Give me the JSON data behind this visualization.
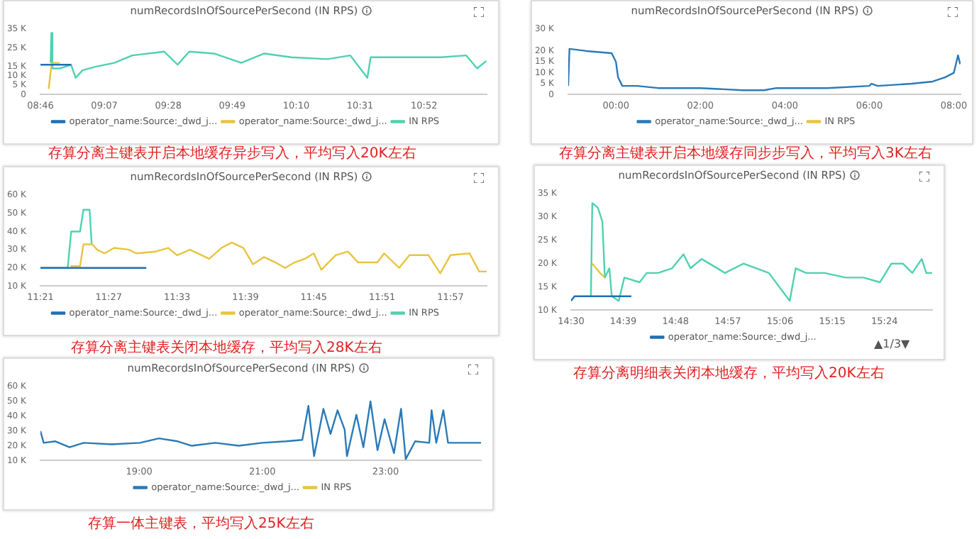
{
  "chart_data": [
    {
      "type": "line",
      "title": "numRecordsInOfSourcePerSecond (IN RPS)",
      "legend": "bottom",
      "marker": "none",
      "annotations": [
        "存算分离主键表开启本地缓存异步写入，平均写入20K左右"
      ],
      "xlim": [
        8.767,
        11.21
      ],
      "xticks": [
        {
          "value": 8.767,
          "label": "08:46"
        },
        {
          "value": 9.117,
          "label": "09:07"
        },
        {
          "value": 9.467,
          "label": "09:28"
        },
        {
          "value": 9.817,
          "label": "09:49"
        },
        {
          "value": 10.167,
          "label": "10:10"
        },
        {
          "value": 10.517,
          "label": "10:31"
        },
        {
          "value": 10.867,
          "label": "10:52"
        }
      ],
      "ylim": [
        0,
        35000
      ],
      "yticks": [
        {
          "value": 0,
          "label": "0"
        },
        {
          "value": 5000,
          "label": "5 K"
        },
        {
          "value": 10000,
          "label": "10 K"
        },
        {
          "value": 15000,
          "label": "15 K"
        },
        {
          "value": 25000,
          "label": "25 K"
        },
        {
          "value": 35000,
          "label": "35 K"
        }
      ],
      "series": [
        {
          "name": "operator_name:Source:_dwd_j...",
          "color": "#1f6fb5",
          "x": [
            8.767,
            8.935
          ],
          "values": [
            16000,
            16000
          ]
        },
        {
          "name": "operator_name:Source:_dwd_j...",
          "color": "#e8c440",
          "x": [
            8.812,
            8.829,
            8.873
          ],
          "values": [
            3000,
            17000,
            17000
          ]
        },
        {
          "name": "IN RPS",
          "color": "#4fd1b0",
          "x": [
            8.823,
            8.827,
            8.833,
            8.873,
            8.935,
            8.96,
            8.998,
            9.072,
            9.172,
            9.27,
            9.445,
            9.518,
            9.582,
            9.717,
            9.867,
            9.992,
            10.14,
            10.338,
            10.463,
            10.557,
            10.575,
            10.76,
            10.96,
            11.097,
            11.158,
            11.208
          ],
          "values": [
            17000,
            33000,
            14000,
            14000,
            16000,
            9000,
            13000,
            15000,
            17000,
            21000,
            23000,
            16000,
            23000,
            22000,
            17000,
            22000,
            20000,
            19000,
            21000,
            9000,
            20000,
            20000,
            20000,
            21000,
            14000,
            18000
          ]
        }
      ]
    },
    {
      "type": "line",
      "title": "numRecordsInOfSourcePerSecond (IN RPS)",
      "legend": "bottom",
      "marker": "none",
      "annotations": [
        "存算分离主键表开启本地缓存同步步写入，平均写入3K左右"
      ],
      "xlim": [
        -1.13,
        8.16
      ],
      "xticks": [
        {
          "value": 0,
          "label": "00:00"
        },
        {
          "value": 2,
          "label": "02:00"
        },
        {
          "value": 4,
          "label": "04:00"
        },
        {
          "value": 6,
          "label": "06:00"
        },
        {
          "value": 8,
          "label": "08:00"
        }
      ],
      "ylim": [
        0,
        30000
      ],
      "yticks": [
        {
          "value": 0,
          "label": "0"
        },
        {
          "value": 5000,
          "label": "5 K"
        },
        {
          "value": 10000,
          "label": "10 K"
        },
        {
          "value": 15000,
          "label": "15 K"
        },
        {
          "value": 20000,
          "label": "20 K"
        },
        {
          "value": 30000,
          "label": "30 K"
        }
      ],
      "series": [
        {
          "name": "operator_name:Source:_dwd_j...",
          "color": "#2a7ab8",
          "x": [
            -1.13,
            -1.1,
            -0.7,
            -0.1,
            0.0,
            0.05,
            0.15,
            0.5,
            1,
            2,
            3,
            3.5,
            3.8,
            4,
            5,
            6,
            6.05,
            6.2,
            7,
            7.5,
            7.8,
            8,
            8.1,
            8.15
          ],
          "values": [
            4000,
            21000,
            20000,
            19000,
            15000,
            8000,
            4000,
            4000,
            3000,
            3000,
            2000,
            2000,
            3000,
            3000,
            3000,
            4000,
            5000,
            4000,
            5000,
            6000,
            8000,
            10000,
            18000,
            14000
          ]
        },
        {
          "name": "IN RPS",
          "color": "#e8c440"
        }
      ]
    },
    {
      "type": "line",
      "title": "numRecordsInOfSourcePerSecond (IN RPS)",
      "legend": "bottom",
      "marker": "none",
      "annotations": [
        "存算分离主键表关闭本地缓存，平均写入28K左右"
      ],
      "xlim": [
        11.35,
        12.003
      ],
      "xticks": [
        {
          "value": 11.35,
          "label": "11:21"
        },
        {
          "value": 11.45,
          "label": "11:27"
        },
        {
          "value": 11.55,
          "label": "11:33"
        },
        {
          "value": 11.65,
          "label": "11:39"
        },
        {
          "value": 11.75,
          "label": "11:45"
        },
        {
          "value": 11.85,
          "label": "11:51"
        },
        {
          "value": 11.95,
          "label": "11:57"
        }
      ],
      "ylim": [
        10000,
        60000
      ],
      "yticks": [
        {
          "value": 10000,
          "label": "10 K"
        },
        {
          "value": 20000,
          "label": "20 K"
        },
        {
          "value": 30000,
          "label": "30 K"
        },
        {
          "value": 40000,
          "label": "40 K"
        },
        {
          "value": 50000,
          "label": "50 K"
        },
        {
          "value": 60000,
          "label": "60 K"
        }
      ],
      "series": [
        {
          "name": "operator_name:Source:_dwd_j...",
          "color": "#1f6fb5",
          "x": [
            11.35,
            11.505
          ],
          "values": [
            20000,
            20000
          ]
        },
        {
          "name": "operator_name:Source:_dwd_j...",
          "color": "#e8c440",
          "x": [
            11.394,
            11.408,
            11.413,
            11.426,
            11.433,
            11.444,
            11.458,
            11.48,
            11.49,
            11.519,
            11.537,
            11.55,
            11.569,
            11.597,
            11.615,
            11.63,
            11.647,
            11.661,
            11.677,
            11.694,
            11.708,
            11.722,
            11.737,
            11.75,
            11.761,
            11.782,
            11.8,
            11.815,
            11.843,
            11.853,
            11.875,
            11.89,
            11.918,
            11.935,
            11.95,
            11.978,
            11.992,
            12.003
          ],
          "values": [
            21000,
            21000,
            33000,
            33000,
            30000,
            28000,
            31000,
            30000,
            28000,
            29000,
            31000,
            27000,
            30000,
            25000,
            31000,
            34000,
            31000,
            22000,
            26000,
            23000,
            20000,
            23000,
            25000,
            28000,
            19000,
            27000,
            29000,
            23000,
            23000,
            28000,
            20000,
            27000,
            27000,
            17000,
            27000,
            28000,
            18000,
            18000
          ]
        },
        {
          "name": "IN RPS",
          "color": "#4fd1b0",
          "x": [
            11.35,
            11.39,
            11.395,
            11.408,
            11.413,
            11.422,
            11.425
          ],
          "values": [
            20000,
            20000,
            40000,
            40000,
            52000,
            52000,
            33000
          ]
        }
      ]
    },
    {
      "type": "line",
      "title": "numRecordsInOfSourcePerSecond (IN RPS)",
      "legend": "bottom",
      "marker": "none",
      "annotations": [
        "▲1/3▼",
        "存算分离明细表关闭本地缓存，平均写入20K左右"
      ],
      "xlim": [
        14.5,
        15.537
      ],
      "xticks": [
        {
          "value": 14.5,
          "label": "14:30"
        },
        {
          "value": 14.65,
          "label": "14:39"
        },
        {
          "value": 14.8,
          "label": "14:48"
        },
        {
          "value": 14.95,
          "label": "14:57"
        },
        {
          "value": 15.1,
          "label": "15:06"
        },
        {
          "value": 15.25,
          "label": "15:15"
        },
        {
          "value": 15.4,
          "label": "15:24"
        }
      ],
      "ylim": [
        10000,
        35000
      ],
      "yticks": [
        {
          "value": 10000,
          "label": "10 K"
        },
        {
          "value": 15000,
          "label": "15 K"
        },
        {
          "value": 20000,
          "label": "20 K"
        },
        {
          "value": 25000,
          "label": "25 K"
        },
        {
          "value": 30000,
          "label": "30 K"
        },
        {
          "value": 35000,
          "label": "35 K"
        }
      ],
      "series": [
        {
          "name": "operator_name:Source:_dwd_j...",
          "color": "#1f6fb5",
          "x": [
            14.5,
            14.51,
            14.673
          ],
          "values": [
            12000,
            13000,
            13000
          ]
        },
        {
          "color": "#e8c440",
          "x": [
            14.561,
            14.583,
            14.597
          ],
          "values": [
            20000,
            18000,
            17000
          ]
        },
        {
          "color": "#4fd1b0",
          "x": [
            14.557,
            14.561,
            14.577,
            14.59,
            14.597,
            14.61,
            14.617,
            14.637,
            14.653,
            14.697,
            14.717,
            14.75,
            14.79,
            14.823,
            14.843,
            14.875,
            14.942,
            14.995,
            15.068,
            15.128,
            15.145,
            15.175,
            15.228,
            15.288,
            15.34,
            15.387,
            15.42,
            15.453,
            15.48,
            15.507,
            15.52,
            15.537
          ],
          "values": [
            13000,
            33000,
            32000,
            29000,
            17000,
            19000,
            13000,
            12000,
            17000,
            16000,
            18000,
            18000,
            19000,
            22000,
            19000,
            21000,
            18000,
            20000,
            18000,
            12000,
            19000,
            18000,
            18000,
            17000,
            17000,
            16000,
            20000,
            20000,
            18000,
            21000,
            18000,
            18000
          ]
        }
      ]
    },
    {
      "type": "line",
      "title": "numRecordsInOfSourcePerSecond (IN RPS)",
      "legend": "bottom",
      "marker": "none",
      "annotations": [
        "存算一体主键表，平均写入25K左右"
      ],
      "xlim": [
        17.397,
        24.55
      ],
      "xticks": [
        {
          "value": 19,
          "label": "19:00"
        },
        {
          "value": 21,
          "label": "21:00"
        },
        {
          "value": 23,
          "label": "23:00"
        }
      ],
      "ylim": [
        10000,
        60000
      ],
      "yticks": [
        {
          "value": 10000,
          "label": "10 K"
        },
        {
          "value": 20000,
          "label": "20 K"
        },
        {
          "value": 30000,
          "label": "30 K"
        },
        {
          "value": 40000,
          "label": "40 K"
        },
        {
          "value": 50000,
          "label": "50 K"
        },
        {
          "value": 60000,
          "label": "60 K"
        }
      ],
      "series": [
        {
          "name": "operator_name:Source:_dwd_j...",
          "color": "#2a7ab8",
          "x": [
            17.397,
            17.45,
            17.641,
            17.87,
            18.1,
            18.557,
            19.015,
            19.32,
            19.626,
            19.855,
            20.237,
            20.618,
            21,
            21.382,
            21.649,
            21.748,
            21.84,
            21.992,
            22.107,
            22.221,
            22.336,
            22.374,
            22.527,
            22.641,
            22.756,
            22.87,
            22.985,
            23.137,
            23.252,
            23.328,
            23.481,
            23.71,
            23.748,
            23.824,
            23.939,
            24.015,
            24.282,
            24.55
          ],
          "values": [
            30000,
            22000,
            23000,
            19000,
            22000,
            21000,
            22000,
            25000,
            23000,
            20000,
            22000,
            20000,
            22000,
            23000,
            24000,
            47000,
            13000,
            45000,
            28000,
            44000,
            31000,
            13000,
            41000,
            19000,
            50000,
            17000,
            38000,
            15000,
            45000,
            11000,
            23000,
            22000,
            44000,
            22000,
            44000,
            22000,
            22000,
            22000
          ]
        },
        {
          "name": "IN RPS",
          "color": "#e8c440"
        }
      ]
    }
  ]
}
